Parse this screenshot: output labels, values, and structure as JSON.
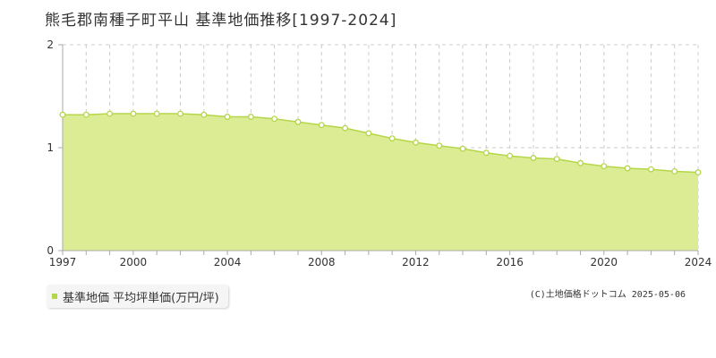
{
  "title": "熊毛郡南種子町平山 基準地価推移[1997-2024]",
  "legend": {
    "label": "基準地価 平均坪単価(万円/坪)"
  },
  "copyright": "(C)土地価格ドットコム 2025-05-06",
  "colors": {
    "fill": "#dcec94",
    "line": "#b5d64a",
    "marker_fill": "#ffffff",
    "grid": "#cccccc",
    "axis": "#aaaaaa"
  },
  "chart_data": {
    "type": "area",
    "title": "熊毛郡南種子町平山 基準地価推移[1997-2024]",
    "xlabel": "",
    "ylabel": "",
    "xlim": [
      1997,
      2024
    ],
    "ylim": [
      0,
      2
    ],
    "x_ticks": [
      1997,
      2000,
      2004,
      2008,
      2012,
      2016,
      2020,
      2024
    ],
    "y_ticks": [
      0,
      1,
      2
    ],
    "grid": true,
    "legend_position": "bottom-left",
    "series": [
      {
        "name": "基準地価 平均坪単価(万円/坪)",
        "x": [
          1997,
          1998,
          1999,
          2000,
          2001,
          2002,
          2003,
          2004,
          2005,
          2006,
          2007,
          2008,
          2009,
          2010,
          2011,
          2012,
          2013,
          2014,
          2015,
          2016,
          2017,
          2018,
          2019,
          2020,
          2021,
          2022,
          2023,
          2024
        ],
        "values": [
          1.32,
          1.32,
          1.33,
          1.33,
          1.33,
          1.33,
          1.32,
          1.3,
          1.3,
          1.28,
          1.25,
          1.22,
          1.19,
          1.14,
          1.09,
          1.05,
          1.02,
          0.99,
          0.95,
          0.92,
          0.9,
          0.89,
          0.85,
          0.82,
          0.8,
          0.79,
          0.77,
          0.76
        ]
      }
    ]
  }
}
